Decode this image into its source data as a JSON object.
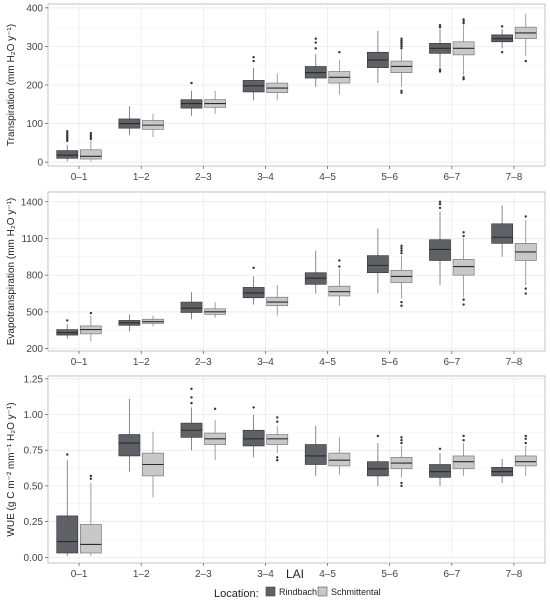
{
  "figure": {
    "x_axis_title": "LAI",
    "legend_title": "Location:",
    "legend_items": [
      {
        "label": "Rindbach",
        "color": "#5e6166"
      },
      {
        "label": "Schmittental",
        "color": "#c8c8c8"
      }
    ]
  },
  "chart_data": [
    {
      "type": "box",
      "ylabel": "Transpiration (mm H₂O y⁻¹)",
      "ylim": [
        -10,
        410
      ],
      "yticks": [
        0,
        100,
        200,
        300,
        400
      ],
      "categories": [
        "0–1",
        "1–2",
        "2–3",
        "3–4",
        "4–5",
        "5–6",
        "6–7",
        "7–8"
      ],
      "grid": true,
      "series": [
        {
          "name": "Rindbach",
          "boxes": [
            {
              "whislo": 2,
              "q1": 10,
              "med": 18,
              "q3": 30,
              "whishi": 45,
              "fliers": [
                55,
                60,
                65,
                70,
                75,
                80
              ]
            },
            {
              "whislo": 70,
              "q1": 88,
              "med": 100,
              "q3": 112,
              "whishi": 145,
              "fliers": []
            },
            {
              "whislo": 120,
              "q1": 140,
              "med": 152,
              "q3": 162,
              "whishi": 185,
              "fliers": [
                205
              ]
            },
            {
              "whislo": 160,
              "q1": 182,
              "med": 198,
              "q3": 212,
              "whishi": 245,
              "fliers": [
                262,
                272
              ]
            },
            {
              "whislo": 195,
              "q1": 218,
              "med": 232,
              "q3": 248,
              "whishi": 280,
              "fliers": [
                295,
                310,
                320
              ]
            },
            {
              "whislo": 205,
              "q1": 245,
              "med": 265,
              "q3": 285,
              "whishi": 340,
              "fliers": []
            },
            {
              "whislo": 245,
              "q1": 282,
              "med": 295,
              "q3": 308,
              "whishi": 345,
              "fliers": [
                235,
                240,
                350,
                355
              ]
            },
            {
              "whislo": 295,
              "q1": 312,
              "med": 320,
              "q3": 330,
              "whishi": 345,
              "fliers": [
                285,
                352
              ]
            }
          ]
        },
        {
          "name": "Schmittental",
          "boxes": [
            {
              "whislo": 2,
              "q1": 8,
              "med": 15,
              "q3": 32,
              "whishi": 55,
              "fliers": [
                60,
                65,
                70,
                75
              ]
            },
            {
              "whislo": 65,
              "q1": 85,
              "med": 96,
              "q3": 108,
              "whishi": 125,
              "fliers": []
            },
            {
              "whislo": 125,
              "q1": 142,
              "med": 152,
              "q3": 162,
              "whishi": 185,
              "fliers": []
            },
            {
              "whislo": 160,
              "q1": 180,
              "med": 192,
              "q3": 205,
              "whishi": 230,
              "fliers": []
            },
            {
              "whislo": 175,
              "q1": 205,
              "med": 220,
              "q3": 235,
              "whishi": 265,
              "fliers": [
                285
              ]
            },
            {
              "whislo": 195,
              "q1": 232,
              "med": 248,
              "q3": 262,
              "whishi": 290,
              "fliers": [
                180,
                185,
                295,
                300,
                305,
                310,
                315,
                320
              ]
            },
            {
              "whislo": 225,
              "q1": 278,
              "med": 295,
              "q3": 312,
              "whishi": 355,
              "fliers": [
                215,
                220,
                360,
                365,
                370
              ]
            },
            {
              "whislo": 275,
              "q1": 320,
              "med": 335,
              "q3": 350,
              "whishi": 385,
              "fliers": [
                262
              ]
            }
          ]
        }
      ]
    },
    {
      "type": "box",
      "ylabel": "Evapotranspiration (mm H₂O y⁻¹)",
      "ylim": [
        180,
        1480
      ],
      "yticks": [
        200,
        500,
        800,
        1100,
        1400
      ],
      "categories": [
        "0–1",
        "1–2",
        "2–3",
        "3–4",
        "4–5",
        "5–6",
        "6–7",
        "7–8"
      ],
      "grid": true,
      "series": [
        {
          "name": "Rindbach",
          "boxes": [
            {
              "whislo": 280,
              "q1": 310,
              "med": 330,
              "q3": 355,
              "whishi": 400,
              "fliers": [
                430
              ]
            },
            {
              "whislo": 340,
              "q1": 390,
              "med": 410,
              "q3": 430,
              "whishi": 480,
              "fliers": []
            },
            {
              "whislo": 440,
              "q1": 495,
              "med": 530,
              "q3": 580,
              "whishi": 660,
              "fliers": []
            },
            {
              "whislo": 560,
              "q1": 615,
              "med": 655,
              "q3": 700,
              "whishi": 790,
              "fliers": [
                860
              ]
            },
            {
              "whislo": 650,
              "q1": 725,
              "med": 775,
              "q3": 820,
              "whishi": 1000,
              "fliers": []
            },
            {
              "whislo": 650,
              "q1": 820,
              "med": 880,
              "q3": 960,
              "whishi": 1180,
              "fliers": []
            },
            {
              "whislo": 720,
              "q1": 920,
              "med": 1010,
              "q3": 1090,
              "whishi": 1320,
              "fliers": [
                1350,
                1380,
                1400
              ]
            },
            {
              "whislo": 950,
              "q1": 1060,
              "med": 1110,
              "q3": 1220,
              "whishi": 1370,
              "fliers": []
            }
          ]
        },
        {
          "name": "Schmittental",
          "boxes": [
            {
              "whislo": 260,
              "q1": 320,
              "med": 355,
              "q3": 385,
              "whishi": 470,
              "fliers": [
                490
              ]
            },
            {
              "whislo": 380,
              "q1": 405,
              "med": 420,
              "q3": 440,
              "whishi": 470,
              "fliers": []
            },
            {
              "whislo": 450,
              "q1": 480,
              "med": 500,
              "q3": 525,
              "whishi": 580,
              "fliers": []
            },
            {
              "whislo": 470,
              "q1": 550,
              "med": 580,
              "q3": 620,
              "whishi": 720,
              "fliers": []
            },
            {
              "whislo": 550,
              "q1": 630,
              "med": 665,
              "q3": 710,
              "whishi": 850,
              "fliers": [
                870,
                920
              ]
            },
            {
              "whislo": 610,
              "q1": 740,
              "med": 790,
              "q3": 840,
              "whishi": 960,
              "fliers": [
                550,
                580,
                980,
                1000,
                1020,
                1040
              ]
            },
            {
              "whislo": 620,
              "q1": 800,
              "med": 870,
              "q3": 930,
              "whishi": 1100,
              "fliers": [
                560,
                600,
                1120,
                1150
              ]
            },
            {
              "whislo": 720,
              "q1": 920,
              "med": 990,
              "q3": 1060,
              "whishi": 1250,
              "fliers": [
                650,
                690,
                1280
              ]
            }
          ]
        }
      ]
    },
    {
      "type": "box",
      "ylabel": "WUE (g C m⁻² mm⁻¹ H₂O y⁻¹)",
      "ylim": [
        -0.04,
        1.27
      ],
      "yticks": [
        0.0,
        0.25,
        0.5,
        0.75,
        1.0,
        1.25
      ],
      "categories": [
        "0–1",
        "1–2",
        "2–3",
        "3–4",
        "4–5",
        "5–6",
        "6–7",
        "7–8"
      ],
      "grid": true,
      "series": [
        {
          "name": "Rindbach",
          "boxes": [
            {
              "whislo": 0.01,
              "q1": 0.03,
              "med": 0.11,
              "q3": 0.29,
              "whishi": 0.68,
              "fliers": [
                0.72
              ]
            },
            {
              "whislo": 0.6,
              "q1": 0.71,
              "med": 0.8,
              "q3": 0.86,
              "whishi": 1.11,
              "fliers": []
            },
            {
              "whislo": 0.75,
              "q1": 0.84,
              "med": 0.89,
              "q3": 0.94,
              "whishi": 1.05,
              "fliers": [
                1.08,
                1.12,
                1.18
              ]
            },
            {
              "whislo": 0.7,
              "q1": 0.78,
              "med": 0.83,
              "q3": 0.89,
              "whishi": 1.0,
              "fliers": [
                1.05
              ]
            },
            {
              "whislo": 0.57,
              "q1": 0.65,
              "med": 0.71,
              "q3": 0.79,
              "whishi": 0.92,
              "fliers": []
            },
            {
              "whislo": 0.5,
              "q1": 0.57,
              "med": 0.62,
              "q3": 0.67,
              "whishi": 0.8,
              "fliers": [
                0.85
              ]
            },
            {
              "whislo": 0.5,
              "q1": 0.56,
              "med": 0.6,
              "q3": 0.65,
              "whishi": 0.73,
              "fliers": [
                0.76
              ]
            },
            {
              "whislo": 0.52,
              "q1": 0.57,
              "med": 0.6,
              "q3": 0.63,
              "whishi": 0.69,
              "fliers": []
            }
          ]
        },
        {
          "name": "Schmittental",
          "boxes": [
            {
              "whislo": 0.01,
              "q1": 0.03,
              "med": 0.09,
              "q3": 0.23,
              "whishi": 0.52,
              "fliers": [
                0.55,
                0.57
              ]
            },
            {
              "whislo": 0.42,
              "q1": 0.57,
              "med": 0.65,
              "q3": 0.73,
              "whishi": 0.88,
              "fliers": []
            },
            {
              "whislo": 0.68,
              "q1": 0.79,
              "med": 0.83,
              "q3": 0.87,
              "whishi": 0.96,
              "fliers": [
                1.04
              ]
            },
            {
              "whislo": 0.73,
              "q1": 0.79,
              "med": 0.83,
              "q3": 0.86,
              "whishi": 0.92,
              "fliers": [
                0.68,
                0.7,
                0.95,
                0.98
              ]
            },
            {
              "whislo": 0.58,
              "q1": 0.64,
              "med": 0.68,
              "q3": 0.73,
              "whishi": 0.84,
              "fliers": []
            },
            {
              "whislo": 0.56,
              "q1": 0.62,
              "med": 0.66,
              "q3": 0.7,
              "whishi": 0.78,
              "fliers": [
                0.5,
                0.52,
                0.8,
                0.82,
                0.84
              ]
            },
            {
              "whislo": 0.57,
              "q1": 0.62,
              "med": 0.67,
              "q3": 0.71,
              "whishi": 0.8,
              "fliers": [
                0.82,
                0.85
              ]
            },
            {
              "whislo": 0.57,
              "q1": 0.64,
              "med": 0.67,
              "q3": 0.71,
              "whishi": 0.78,
              "fliers": [
                0.8,
                0.83,
                0.85
              ]
            }
          ]
        }
      ]
    }
  ]
}
